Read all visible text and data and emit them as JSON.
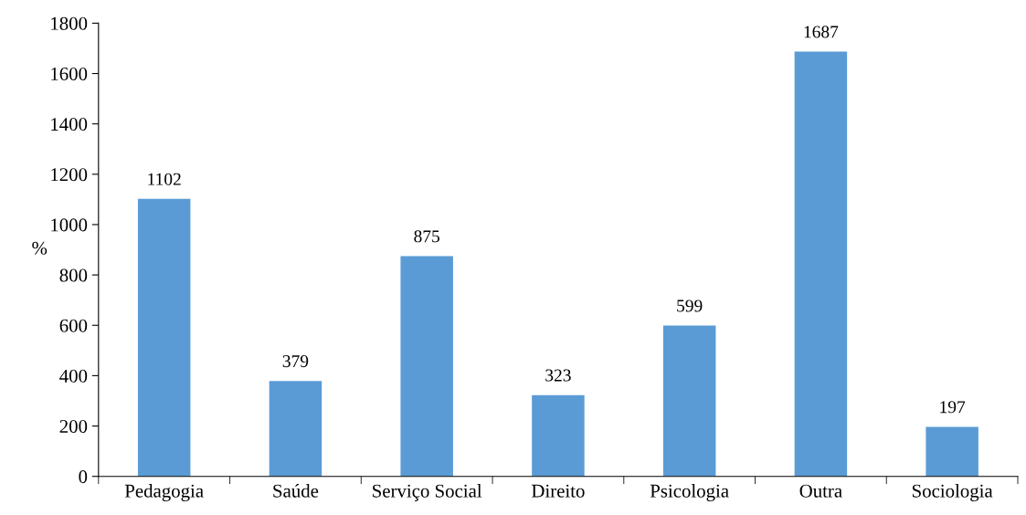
{
  "chart_data": {
    "type": "bar",
    "ylabel": "%",
    "categories": [
      "Pedagogia",
      "Saúde",
      "Serviço Social",
      "Direito",
      "Psicologia",
      "Outra",
      "Sociologia"
    ],
    "values": [
      1102,
      379,
      875,
      323,
      599,
      1687,
      197
    ],
    "color": "#5b9bd5",
    "ylim": [
      0,
      1800
    ],
    "yticks": [
      0,
      200,
      400,
      600,
      800,
      1000,
      1200,
      1400,
      1600,
      1800
    ],
    "data_labels": true,
    "grid": false,
    "legend": false
  }
}
